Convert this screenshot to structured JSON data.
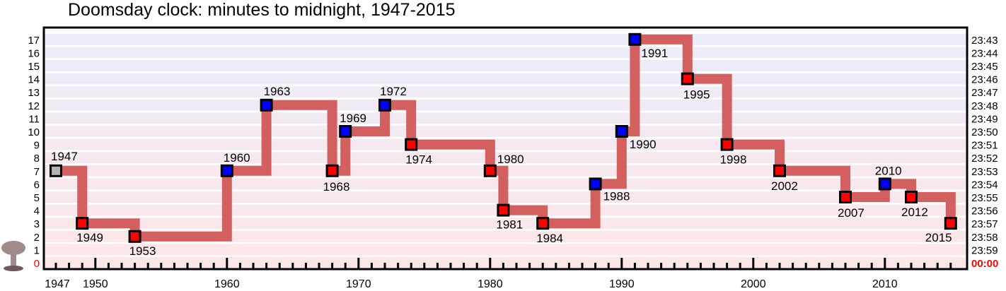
{
  "chart_data": {
    "type": "line",
    "title": "Doomsday clock: minutes to midnight, 1947-2015",
    "xlabel": "",
    "ylabel": "",
    "xlim": [
      1946,
      1966.5
    ],
    "ylim": [
      0,
      17
    ],
    "x_ticks": [
      "1950",
      "1960",
      "1970",
      "1980",
      "1990",
      "2000",
      "2010"
    ],
    "x_start_label": "1947",
    "y_left_ticks": [
      "0",
      "1",
      "2",
      "3",
      "4",
      "5",
      "6",
      "7",
      "8",
      "9",
      "10",
      "11",
      "12",
      "13",
      "14",
      "15",
      "16",
      "17"
    ],
    "y_right_ticks": [
      "00:00",
      "23:59",
      "23:58",
      "23:57",
      "23:56",
      "23:55",
      "23:54",
      "23:53",
      "23:52",
      "23:51",
      "23:50",
      "23:49",
      "23:48",
      "23:47",
      "23:46",
      "23:45",
      "23:44",
      "23:43"
    ],
    "grid": true,
    "points": [
      {
        "year": 1947,
        "minutes": 7,
        "label": "1947",
        "kind": "start"
      },
      {
        "year": 1949,
        "minutes": 3,
        "label": "1949",
        "kind": "closer"
      },
      {
        "year": 1953,
        "minutes": 2,
        "label": "1953",
        "kind": "closer"
      },
      {
        "year": 1960,
        "minutes": 7,
        "label": "1960",
        "kind": "farther"
      },
      {
        "year": 1963,
        "minutes": 12,
        "label": "1963",
        "kind": "farther"
      },
      {
        "year": 1968,
        "minutes": 7,
        "label": "1968",
        "kind": "closer"
      },
      {
        "year": 1969,
        "minutes": 10,
        "label": "1969",
        "kind": "farther"
      },
      {
        "year": 1972,
        "minutes": 12,
        "label": "1972",
        "kind": "farther"
      },
      {
        "year": 1974,
        "minutes": 9,
        "label": "1974",
        "kind": "closer"
      },
      {
        "year": 1980,
        "minutes": 7,
        "label": "1980",
        "kind": "closer"
      },
      {
        "year": 1981,
        "minutes": 4,
        "label": "1981",
        "kind": "closer"
      },
      {
        "year": 1984,
        "minutes": 3,
        "label": "1984",
        "kind": "closer"
      },
      {
        "year": 1988,
        "minutes": 6,
        "label": "1988",
        "kind": "farther"
      },
      {
        "year": 1990,
        "minutes": 10,
        "label": "1990",
        "kind": "farther"
      },
      {
        "year": 1991,
        "minutes": 17,
        "label": "1991",
        "kind": "farther"
      },
      {
        "year": 1995,
        "minutes": 14,
        "label": "1995",
        "kind": "closer"
      },
      {
        "year": 1998,
        "minutes": 9,
        "label": "1998",
        "kind": "closer"
      },
      {
        "year": 2002,
        "minutes": 7,
        "label": "2002",
        "kind": "closer"
      },
      {
        "year": 2007,
        "minutes": 5,
        "label": "2007",
        "kind": "closer"
      },
      {
        "year": 2010,
        "minutes": 6,
        "label": "2010",
        "kind": "farther"
      },
      {
        "year": 2012,
        "minutes": 5,
        "label": "2012",
        "kind": "closer"
      },
      {
        "year": 2015,
        "minutes": 3,
        "label": "2015",
        "kind": "closer"
      }
    ],
    "step_end_year": 2015.3,
    "colors": {
      "step_line": "#d35f5f",
      "closer_marker": "#ff0000",
      "farther_marker": "#0000ff",
      "start_marker": "#b3b3b3",
      "midnight_label": "#ff0000",
      "band_top": "#ececfa",
      "band_bottom": "#fde6e6",
      "mushroom_icon": "#a08a8a"
    },
    "icons": [
      "mushroom-cloud-icon"
    ]
  }
}
